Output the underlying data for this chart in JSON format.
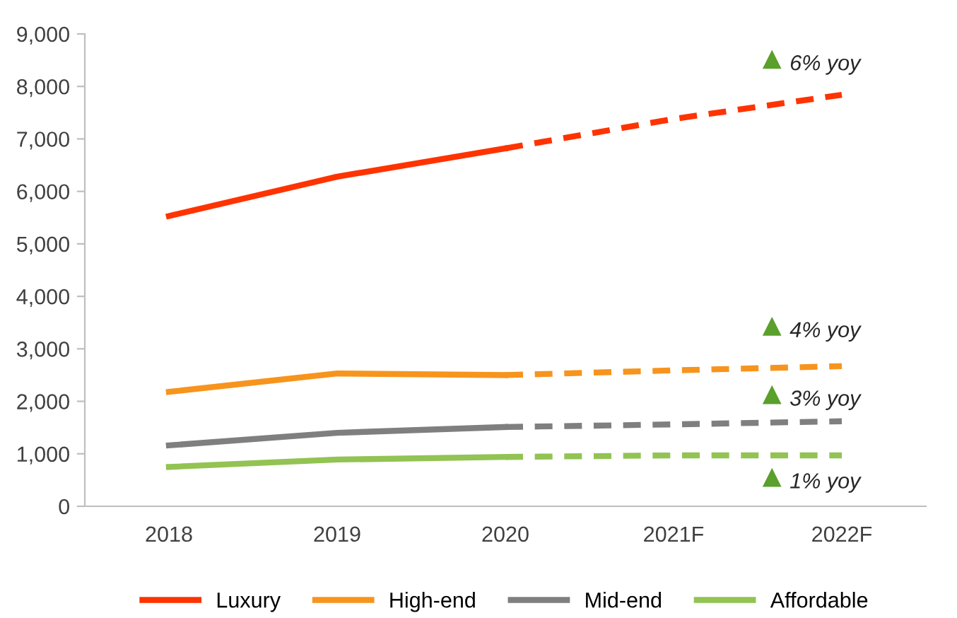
{
  "chart_data": {
    "type": "line",
    "categories": [
      "2018",
      "2019",
      "2020",
      "2021F",
      "2022F"
    ],
    "series": [
      {
        "name": "Luxury",
        "color": "#ff3300",
        "values": [
          5530,
          6280,
          6820,
          null,
          null
        ],
        "line_style": "solid"
      },
      {
        "name": "High-end",
        "color": "#f7941d",
        "values": [
          2180,
          2530,
          2500,
          null,
          null
        ],
        "line_style": "solid"
      },
      {
        "name": "Mid-end",
        "color": "#7f7f7f",
        "values": [
          1160,
          1400,
          1510,
          null,
          null
        ],
        "line_style": "solid"
      },
      {
        "name": "Affordable",
        "color": "#92c353",
        "values": [
          750,
          890,
          940,
          null,
          null
        ],
        "line_style": "solid"
      },
      {
        "color": "#ff3300",
        "values": [
          null,
          null,
          6820,
          7380,
          7840
        ],
        "line_style": "dashed"
      },
      {
        "color": "#f7941d",
        "values": [
          null,
          null,
          2500,
          2590,
          2670
        ],
        "line_style": "dashed"
      },
      {
        "color": "#7f7f7f",
        "values": [
          null,
          null,
          1510,
          1560,
          1620
        ],
        "line_style": "dashed"
      },
      {
        "color": "#92c353",
        "values": [
          null,
          null,
          940,
          970,
          970
        ],
        "line_style": "dashed"
      }
    ],
    "ylim": [
      0,
      9000
    ],
    "yticks": [
      {
        "value": 0,
        "label": "0"
      },
      {
        "value": 1000,
        "label": "1,000"
      },
      {
        "value": 2000,
        "label": "2,000"
      },
      {
        "value": 3000,
        "label": "3,000"
      },
      {
        "value": 4000,
        "label": "4,000"
      },
      {
        "value": 5000,
        "label": "5,000"
      },
      {
        "value": 6000,
        "label": "6,000"
      },
      {
        "value": 7000,
        "label": "7,000"
      },
      {
        "value": 8000,
        "label": "8,000"
      },
      {
        "value": 9000,
        "label": "9,000"
      }
    ],
    "annotations": [
      "6% yoy",
      "4% yoy",
      "3% yoy",
      "1% yoy"
    ],
    "grid": false,
    "legend": "bottom",
    "marker": "none"
  }
}
